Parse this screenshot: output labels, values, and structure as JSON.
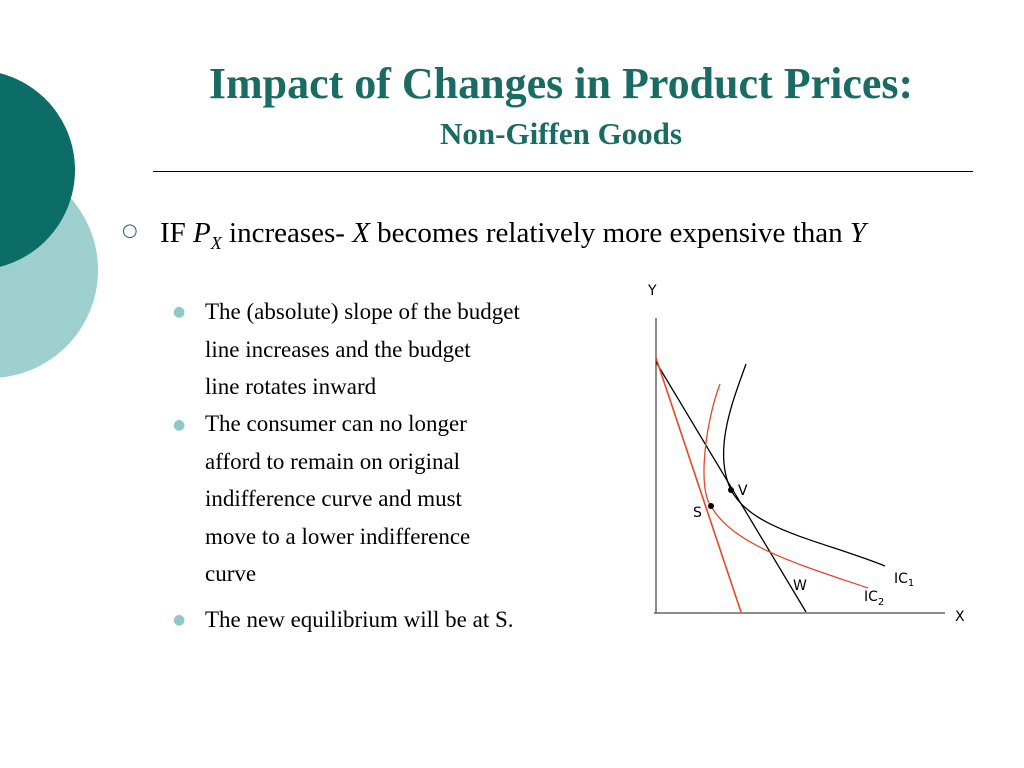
{
  "header": {
    "title": "Impact of Changes in Product Prices:",
    "subtitle": "Non-Giffen Goods"
  },
  "content": {
    "main_bullet": {
      "t1": "IF ",
      "px": "P",
      "px_sub": "X",
      "t2": " increases- ",
      "x": "X",
      "t3": " becomes relatively more expensive than ",
      "y": "Y"
    },
    "sub_bullets": [
      "The (absolute) slope of the budget\nline increases and the budget\nline rotates inward",
      "The consumer can no longer\nafford to remain on original\nindifference curve and must\nmove to a lower indifference\ncurve",
      "The new equilibrium will be at S."
    ]
  },
  "diagram": {
    "axis_y_label": "Y",
    "axis_x_label": "X",
    "point_v": "V",
    "point_s": "S",
    "label_w": "W",
    "ic1_base": "IC",
    "ic1_sub": "1",
    "ic2_base": "IC",
    "ic2_sub": "2",
    "colors": {
      "original": "#000000",
      "new": "#e8452a",
      "axes": "#666666"
    }
  },
  "decor": {
    "dark_teal": "#0c6c66",
    "light_teal": "#9ccfcd",
    "title_color": "#1a6b63"
  }
}
